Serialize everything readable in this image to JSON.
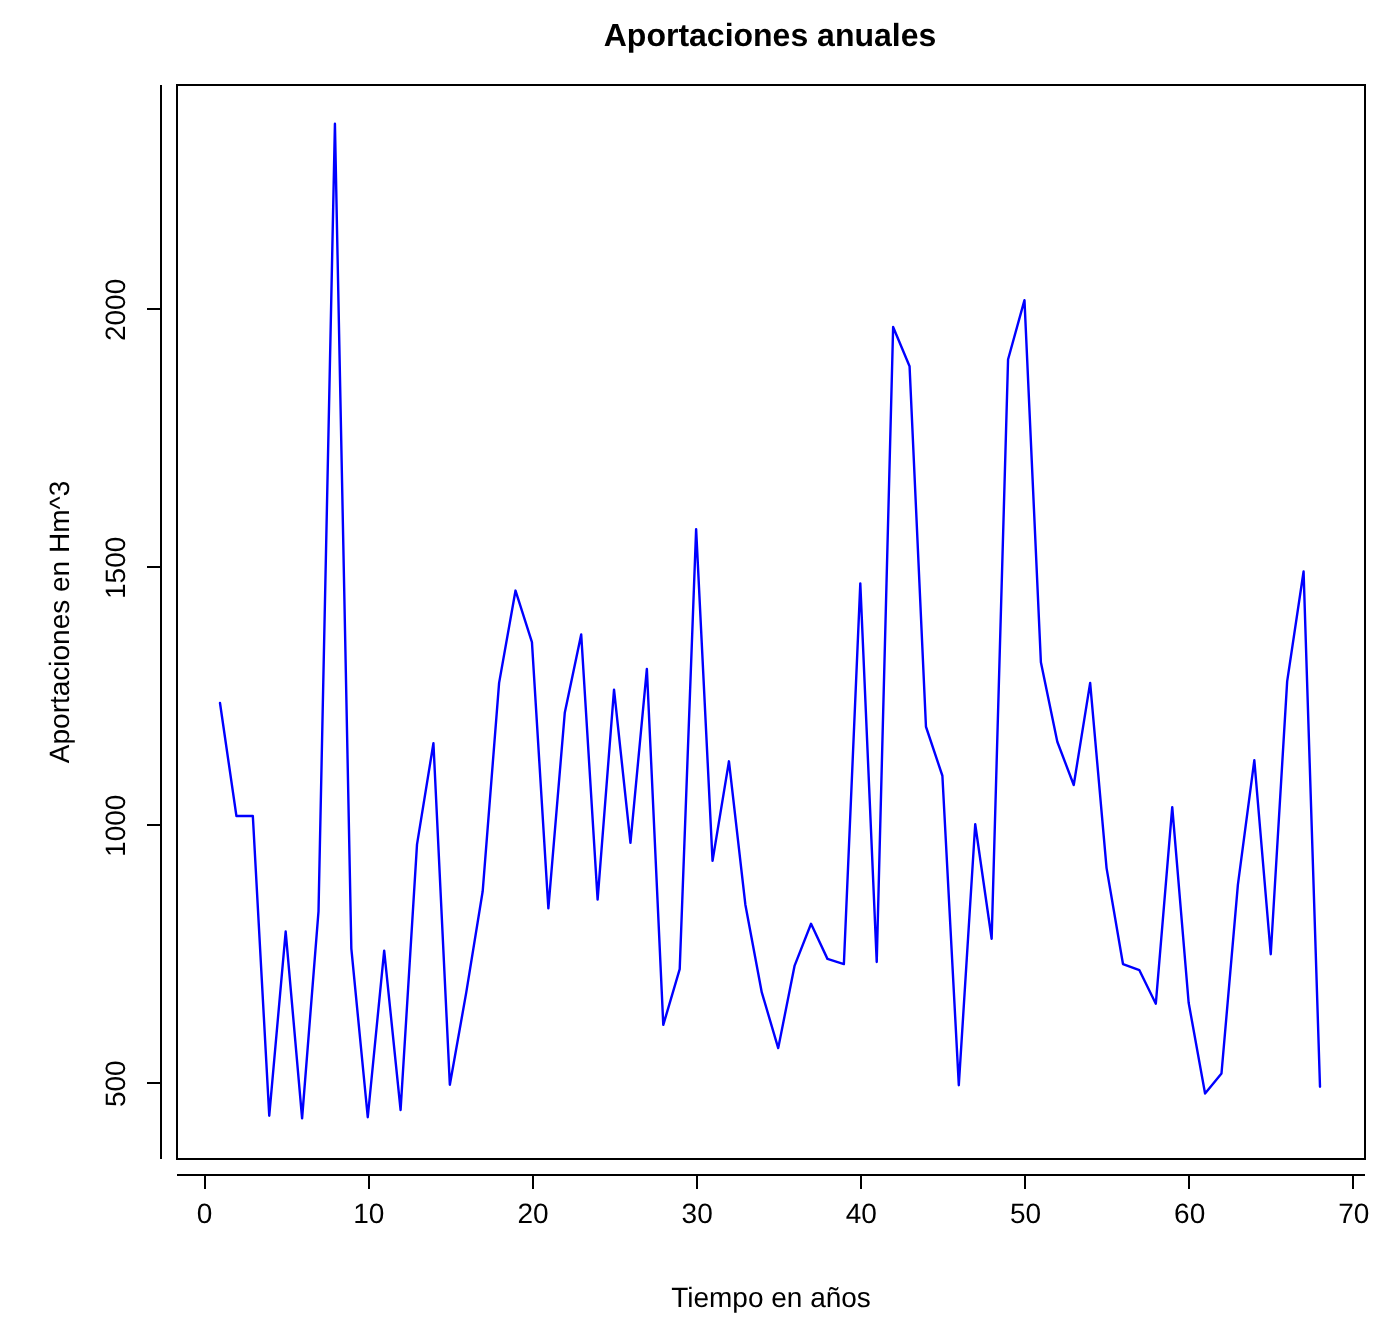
{
  "chart_data": {
    "type": "line",
    "title": "Aportaciones anuales",
    "xlabel": "Tiempo en años",
    "ylabel": "Aportaciones en Hm^3",
    "x": [
      1,
      2,
      3,
      4,
      5,
      6,
      7,
      8,
      9,
      10,
      11,
      12,
      13,
      14,
      15,
      16,
      17,
      18,
      19,
      20,
      21,
      22,
      23,
      24,
      25,
      26,
      27,
      28,
      29,
      30,
      31,
      32,
      33,
      34,
      35,
      36,
      37,
      38,
      39,
      40,
      41,
      42,
      43,
      44,
      45,
      46,
      47,
      48,
      49,
      50,
      51,
      52,
      53,
      54,
      55,
      56,
      57,
      58,
      59,
      60,
      61,
      62,
      63,
      64,
      65,
      66,
      67,
      68
    ],
    "series": [
      {
        "color": "#0000ff",
        "values": [
          1236,
          1017,
          1017,
          436,
          793,
          431,
          832,
          2359,
          760,
          433,
          756,
          447,
          962,
          1158,
          496,
          675,
          871,
          1275,
          1454,
          1354,
          838,
          1217,
          1369,
          855,
          1262,
          965,
          1302,
          612,
          720,
          1573,
          930,
          1123,
          845,
          675,
          567,
          727,
          808,
          740,
          730,
          1468,
          734,
          1965,
          1889,
          1190,
          1095,
          495,
          1001,
          779,
          1902,
          2017,
          1315,
          1161,
          1077,
          1275,
          916,
          730,
          718,
          653,
          1034,
          655,
          479,
          518,
          884,
          1125,
          749,
          1278,
          1491,
          492
        ]
      }
    ],
    "xlim": [
      -1.68,
      70.68
    ],
    "ylim": [
      354,
      2436
    ],
    "xticks": [
      0,
      10,
      20,
      30,
      40,
      50,
      60,
      70
    ],
    "yticks": [
      500,
      1000,
      1500,
      2000
    ],
    "grid": false,
    "marker": "none",
    "line_style": "solid"
  }
}
